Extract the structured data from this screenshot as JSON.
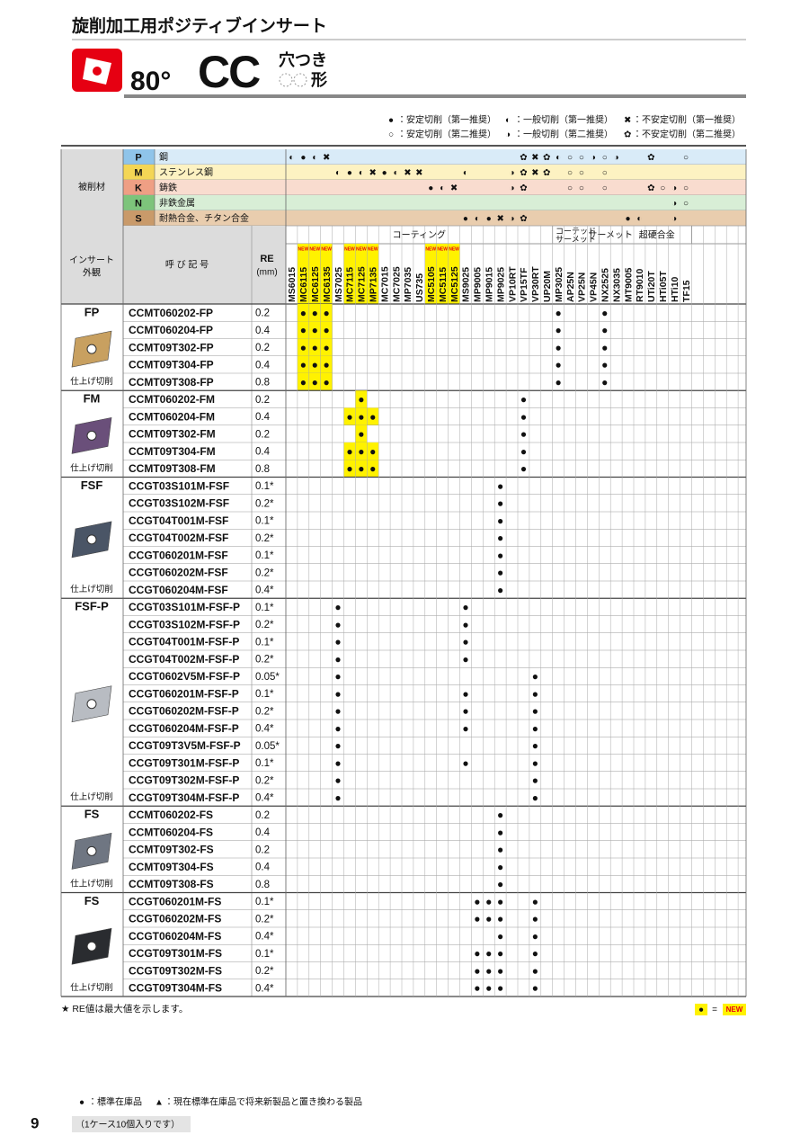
{
  "header": {
    "title": "旋削加工用ポジティブインサート",
    "angle": "80°",
    "code": "CC",
    "note_top": "穴つき",
    "note_bottom": "形"
  },
  "legend": [
    {
      "symbol": "●",
      "text": "：安定切削（第一推奨）"
    },
    {
      "symbol": "◐",
      "text": "：一般切削（第一推奨）"
    },
    {
      "symbol": "✖",
      "text": "：不安定切削（第一推奨）"
    },
    {
      "symbol": "○",
      "text": "：安定切削（第二推奨）"
    },
    {
      "symbol": "◑",
      "text": "：一般切削（第二推奨）"
    },
    {
      "symbol": "✿",
      "text": "：不安定切削（第二推奨）"
    }
  ],
  "materials": {
    "header": "被削材",
    "rows": [
      {
        "code": "P",
        "name": "鋼",
        "color": "#d9ebf8",
        "code_color": "#8fc4ea",
        "grades": {
          "MS6015": "◐",
          "MC6115": "●",
          "MC6125": "◐",
          "MC6135": "✖",
          "VP15TF": "✿",
          "VP30RT": "✖",
          "UP20M": "✿",
          "MP3025": "◐",
          "AP25N": "○",
          "VP25N": "○",
          "VP45N": "◑",
          "NX2525": "○",
          "NX3035": "◑",
          "UTi20T": "✿",
          "TF15": "○"
        }
      },
      {
        "code": "M",
        "name": "ステンレス鋼",
        "color": "#fdf2c2",
        "code_color": "#f4d655",
        "grades": {
          "MS7025": "◐",
          "MC7115": "●",
          "MC7125": "◐",
          "MP7135": "✖",
          "MC7015": "●",
          "MC7025": "◐",
          "MP7035": "✖",
          "US735": "✖",
          "MS9025": "◐",
          "VP10RT": "◑",
          "VP15TF": "✿",
          "VP30RT": "✖",
          "UP20M": "✿",
          "AP25N": "○",
          "VP25N": "○",
          "NX2525": "○"
        }
      },
      {
        "code": "K",
        "name": "鋳鉄",
        "color": "#f9dccf",
        "code_color": "#ef9f84",
        "grades": {
          "MC5105": "●",
          "MC5115": "◐",
          "MC5125": "✖",
          "VP10RT": "◑",
          "VP15TF": "✿",
          "AP25N": "○",
          "VP25N": "○",
          "NX2525": "○",
          "UTi20T": "✿",
          "HTi05T": "○",
          "HTi10": "◑",
          "TF15": "○"
        }
      },
      {
        "code": "N",
        "name": "非鉄金属",
        "color": "#d8eed6",
        "code_color": "#7dc47b",
        "grades": {
          "HTi10": "◑",
          "TF15": "○"
        }
      },
      {
        "code": "S",
        "name": "耐熱合金、チタン合金",
        "color": "#e9cdae",
        "code_color": "#c99a6a",
        "grades": {
          "MS9025": "●",
          "MP9005": "◐",
          "MP9015": "●",
          "MP9025": "✖",
          "VP10RT": "◑",
          "VP15TF": "✿",
          "MT9005": "●",
          "RT9010": "◐",
          "HTi10": "◑"
        }
      }
    ]
  },
  "columns": {
    "appearance": [
      "インサート",
      "外観"
    ],
    "designation": "呼 び 記 号",
    "re": "RE",
    "re_unit": "(mm)",
    "new_tag": "NEW",
    "categories": [
      {
        "lines": [
          "コーティング"
        ],
        "from": "MS6015",
        "to": "UP20M"
      },
      {
        "lines": [
          "コーテッド",
          "サーメット"
        ],
        "from": "MP3025",
        "to": "VP45N"
      },
      {
        "lines": [
          "サーメット"
        ],
        "from": "NX2525",
        "to": "NX3035"
      },
      {
        "lines": [
          "超硬合金"
        ],
        "from": "MT9005",
        "to": "TF15"
      }
    ],
    "grades": [
      "MS6015",
      "MC6115",
      "MC6125",
      "MC6135",
      "MS7025",
      "MC7115",
      "MC7125",
      "MP7135",
      "MC7015",
      "MC7025",
      "MP7035",
      "US735",
      "MC5105",
      "MC5115",
      "MC5125",
      "MS9025",
      "MP9005",
      "MP9015",
      "MP9025",
      "VP10RT",
      "VP15TF",
      "VP30RT",
      "UP20M",
      "MP3025",
      "AP25N",
      "VP25N",
      "VP45N",
      "NX2525",
      "NX3035",
      "MT9005",
      "RT9010",
      "UTi20T",
      "HTi05T",
      "HTi10",
      "TF15"
    ],
    "new_grades": [
      "MC6115",
      "MC6125",
      "MC6135",
      "MC7115",
      "MC7125",
      "MP7135",
      "MC5105",
      "MC5115",
      "MC5125"
    ]
  },
  "groups": [
    {
      "name": "FP",
      "note": "仕上げ切削",
      "rows": [
        {
          "code": "CCMT060202-FP",
          "re": "0.2",
          "stock": [
            "MC6115",
            "MC6125",
            "MC6135",
            "MP3025",
            "NX2525"
          ]
        },
        {
          "code": "CCMT060204-FP",
          "re": "0.4",
          "stock": [
            "MC6115",
            "MC6125",
            "MC6135",
            "MP3025",
            "NX2525"
          ]
        },
        {
          "code": "CCMT09T302-FP",
          "re": "0.2",
          "stock": [
            "MC6115",
            "MC6125",
            "MC6135",
            "MP3025",
            "NX2525"
          ]
        },
        {
          "code": "CCMT09T304-FP",
          "re": "0.4",
          "stock": [
            "MC6115",
            "MC6125",
            "MC6135",
            "MP3025",
            "NX2525"
          ]
        },
        {
          "code": "CCMT09T308-FP",
          "re": "0.8",
          "stock": [
            "MC6115",
            "MC6125",
            "MC6135",
            "MP3025",
            "NX2525"
          ]
        }
      ]
    },
    {
      "name": "FM",
      "note": "仕上げ切削",
      "rows": [
        {
          "code": "CCMT060202-FM",
          "re": "0.2",
          "stock": [
            "MC7125",
            "VP15TF"
          ]
        },
        {
          "code": "CCMT060204-FM",
          "re": "0.4",
          "stock": [
            "MC7115",
            "MC7125",
            "MP7135",
            "VP15TF"
          ]
        },
        {
          "code": "CCMT09T302-FM",
          "re": "0.2",
          "stock": [
            "MC7125",
            "VP15TF"
          ]
        },
        {
          "code": "CCMT09T304-FM",
          "re": "0.4",
          "stock": [
            "MC7115",
            "MC7125",
            "MP7135",
            "VP15TF"
          ]
        },
        {
          "code": "CCMT09T308-FM",
          "re": "0.8",
          "stock": [
            "MC7115",
            "MC7125",
            "MP7135",
            "VP15TF"
          ]
        }
      ]
    },
    {
      "name": "FSF",
      "note": "仕上げ切削",
      "rows": [
        {
          "code": "CCGT03S101M-FSF",
          "re": "0.1*",
          "stock": [
            "MP9025"
          ]
        },
        {
          "code": "CCGT03S102M-FSF",
          "re": "0.2*",
          "stock": [
            "MP9025"
          ]
        },
        {
          "code": "CCGT04T001M-FSF",
          "re": "0.1*",
          "stock": [
            "MP9025"
          ]
        },
        {
          "code": "CCGT04T002M-FSF",
          "re": "0.2*",
          "stock": [
            "MP9025"
          ]
        },
        {
          "code": "CCGT060201M-FSF",
          "re": "0.1*",
          "stock": [
            "MP9025"
          ]
        },
        {
          "code": "CCGT060202M-FSF",
          "re": "0.2*",
          "stock": [
            "MP9025"
          ]
        },
        {
          "code": "CCGT060204M-FSF",
          "re": "0.4*",
          "stock": [
            "MP9025"
          ]
        }
      ]
    },
    {
      "name": "FSF-P",
      "note": "仕上げ切削",
      "rows": [
        {
          "code": "CCGT03S101M-FSF-P",
          "re": "0.1*",
          "stock": [
            "MS7025",
            "MS9025"
          ]
        },
        {
          "code": "CCGT03S102M-FSF-P",
          "re": "0.2*",
          "stock": [
            "MS7025",
            "MS9025"
          ]
        },
        {
          "code": "CCGT04T001M-FSF-P",
          "re": "0.1*",
          "stock": [
            "MS7025",
            "MS9025"
          ]
        },
        {
          "code": "CCGT04T002M-FSF-P",
          "re": "0.2*",
          "stock": [
            "MS7025",
            "MS9025"
          ]
        },
        {
          "code": "CCGT0602V5M-FSF-P",
          "re": "0.05*",
          "stock": [
            "MS7025",
            "VP30RT"
          ]
        },
        {
          "code": "CCGT060201M-FSF-P",
          "re": "0.1*",
          "stock": [
            "MS7025",
            "MS9025",
            "VP30RT"
          ]
        },
        {
          "code": "CCGT060202M-FSF-P",
          "re": "0.2*",
          "stock": [
            "MS7025",
            "MS9025",
            "VP30RT"
          ]
        },
        {
          "code": "CCGT060204M-FSF-P",
          "re": "0.4*",
          "stock": [
            "MS7025",
            "MS9025",
            "VP30RT"
          ]
        },
        {
          "code": "CCGT09T3V5M-FSF-P",
          "re": "0.05*",
          "stock": [
            "MS7025",
            "VP30RT"
          ]
        },
        {
          "code": "CCGT09T301M-FSF-P",
          "re": "0.1*",
          "stock": [
            "MS7025",
            "MS9025",
            "VP30RT"
          ]
        },
        {
          "code": "CCGT09T302M-FSF-P",
          "re": "0.2*",
          "stock": [
            "MS7025",
            "VP30RT"
          ]
        },
        {
          "code": "CCGT09T304M-FSF-P",
          "re": "0.4*",
          "stock": [
            "MS7025",
            "VP30RT"
          ]
        }
      ]
    },
    {
      "name": "FS",
      "note": "仕上げ切削",
      "rows": [
        {
          "code": "CCMT060202-FS",
          "re": "0.2",
          "stock": [
            "MP9025"
          ]
        },
        {
          "code": "CCMT060204-FS",
          "re": "0.4",
          "stock": [
            "MP9025"
          ]
        },
        {
          "code": "CCMT09T302-FS",
          "re": "0.2",
          "stock": [
            "MP9025"
          ]
        },
        {
          "code": "CCMT09T304-FS",
          "re": "0.4",
          "stock": [
            "MP9025"
          ]
        },
        {
          "code": "CCMT09T308-FS",
          "re": "0.8",
          "stock": [
            "MP9025"
          ]
        }
      ]
    },
    {
      "name": "FS",
      "note": "仕上げ切削",
      "rows": [
        {
          "code": "CCGT060201M-FS",
          "re": "0.1*",
          "stock": [
            "MP9005",
            "MP9015",
            "MP9025",
            "VP30RT"
          ]
        },
        {
          "code": "CCGT060202M-FS",
          "re": "0.2*",
          "stock": [
            "MP9005",
            "MP9015",
            "MP9025",
            "VP30RT"
          ]
        },
        {
          "code": "CCGT060204M-FS",
          "re": "0.4*",
          "stock": [
            "MP9025",
            "VP30RT"
          ]
        },
        {
          "code": "CCGT09T301M-FS",
          "re": "0.1*",
          "stock": [
            "MP9005",
            "MP9015",
            "MP9025",
            "VP30RT"
          ]
        },
        {
          "code": "CCGT09T302M-FS",
          "re": "0.2*",
          "stock": [
            "MP9005",
            "MP9015",
            "MP9025",
            "VP30RT"
          ]
        },
        {
          "code": "CCGT09T304M-FS",
          "re": "0.4*",
          "stock": [
            "MP9005",
            "MP9015",
            "MP9025",
            "VP30RT"
          ]
        }
      ]
    }
  ],
  "footer": {
    "re_note": "★  RE値は最大値を示します。",
    "new_symbol": "●",
    "new_equals": "=",
    "new_tag": "NEW",
    "stock": {
      "symbol": "●",
      "text": "：標準在庫品"
    },
    "replace": {
      "symbol": "▲",
      "text": "：現在標準在庫品で将来新製品と置き換わる製品"
    },
    "page": "9",
    "case_note": "（1ケース10個入りです）"
  }
}
